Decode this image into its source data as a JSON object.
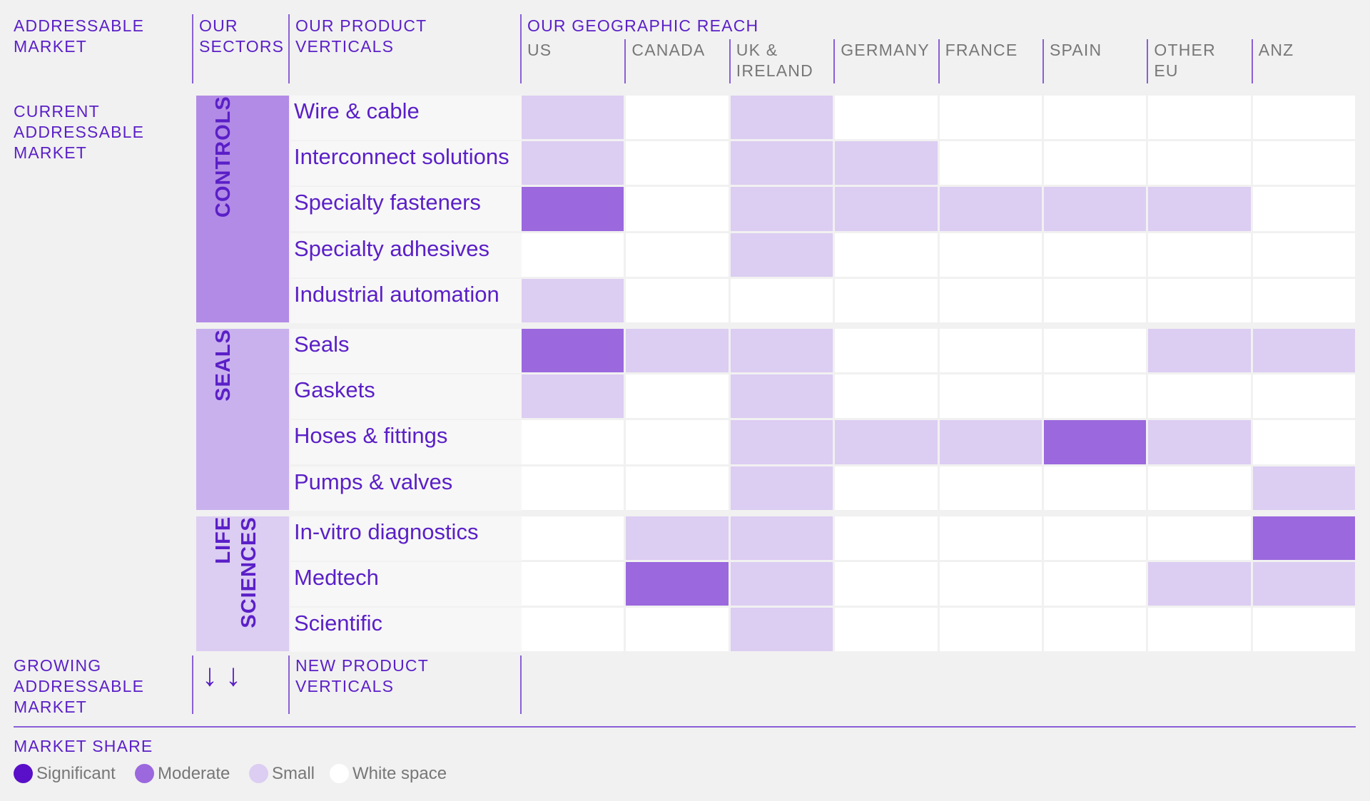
{
  "headers": {
    "addressable_market": "ADDRESSABLE\nMARKET",
    "our_sectors": "OUR\nSECTORS",
    "our_product_verticals": "OUR PRODUCT\nVERTICALS",
    "geographic_reach": "OUR GEOGRAPHIC REACH"
  },
  "row_labels": {
    "current": "CURRENT\nADDRESSABLE\nMARKET",
    "growing": "GROWING\nADDRESSABLE\nMARKET",
    "new_verticals": "NEW PRODUCT\nVERTICALS"
  },
  "colors": {
    "significant": "#5a0fc8",
    "moderate": "#9b68de",
    "small": "#dccdf2",
    "white_space": "#ffffff",
    "controls_bg": "#b28be6",
    "seals_bg": "#c9b1ee",
    "life_sciences_bg": "#dccdf2"
  },
  "legend": {
    "title": "MARKET SHARE",
    "items": [
      {
        "key": "significant",
        "label": "Significant"
      },
      {
        "key": "moderate",
        "label": "Moderate"
      },
      {
        "key": "small",
        "label": "Small"
      },
      {
        "key": "white_space",
        "label": "White space"
      }
    ]
  },
  "chart_data": {
    "type": "heatmap",
    "x": [
      "US",
      "CANADA",
      "UK &\nIRELAND",
      "GERMANY",
      "FRANCE",
      "SPAIN",
      "OTHER\nEU",
      "ANZ"
    ],
    "sectors": [
      {
        "name": "CONTROLS",
        "color_key": "controls_bg",
        "verticals": [
          {
            "name": "Wire & cable",
            "values": [
              "small",
              "white_space",
              "small",
              "white_space",
              "white_space",
              "white_space",
              "white_space",
              "white_space"
            ]
          },
          {
            "name": "Interconnect solutions",
            "values": [
              "small",
              "white_space",
              "small",
              "small",
              "white_space",
              "white_space",
              "white_space",
              "white_space"
            ]
          },
          {
            "name": "Specialty fasteners",
            "values": [
              "moderate",
              "white_space",
              "small",
              "small",
              "small",
              "small",
              "small",
              "white_space"
            ]
          },
          {
            "name": "Specialty adhesives",
            "values": [
              "white_space",
              "white_space",
              "small",
              "white_space",
              "white_space",
              "white_space",
              "white_space",
              "white_space"
            ]
          },
          {
            "name": "Industrial automation",
            "values": [
              "small",
              "white_space",
              "white_space",
              "white_space",
              "white_space",
              "white_space",
              "white_space",
              "white_space"
            ]
          }
        ]
      },
      {
        "name": "SEALS",
        "color_key": "seals_bg",
        "verticals": [
          {
            "name": "Seals",
            "values": [
              "moderate",
              "small",
              "small",
              "white_space",
              "white_space",
              "white_space",
              "small",
              "small"
            ]
          },
          {
            "name": "Gaskets",
            "values": [
              "small",
              "white_space",
              "small",
              "white_space",
              "white_space",
              "white_space",
              "white_space",
              "white_space"
            ]
          },
          {
            "name": "Hoses & fittings",
            "values": [
              "white_space",
              "white_space",
              "small",
              "small",
              "small",
              "moderate",
              "small",
              "white_space"
            ]
          },
          {
            "name": "Pumps & valves",
            "values": [
              "white_space",
              "white_space",
              "small",
              "white_space",
              "white_space",
              "white_space",
              "white_space",
              "small"
            ]
          }
        ]
      },
      {
        "name": "LIFE\nSCIENCES",
        "color_key": "life_sciences_bg",
        "verticals": [
          {
            "name": "In-vitro diagnostics",
            "values": [
              "white_space",
              "small",
              "small",
              "white_space",
              "white_space",
              "white_space",
              "white_space",
              "moderate"
            ]
          },
          {
            "name": "Medtech",
            "values": [
              "white_space",
              "moderate",
              "small",
              "white_space",
              "white_space",
              "white_space",
              "small",
              "small"
            ]
          },
          {
            "name": "Scientific",
            "values": [
              "white_space",
              "white_space",
              "small",
              "white_space",
              "white_space",
              "white_space",
              "white_space",
              "white_space"
            ]
          }
        ]
      }
    ]
  }
}
